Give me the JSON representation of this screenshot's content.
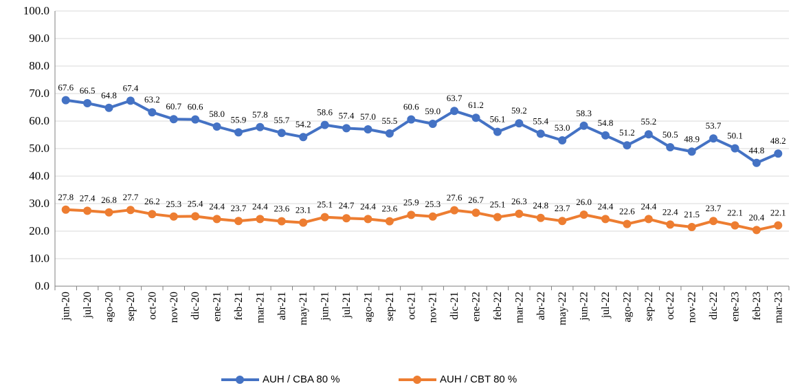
{
  "chart_data": {
    "type": "line",
    "categories": [
      "jun-20",
      "jul-20",
      "ago-20",
      "sep-20",
      "oct-20",
      "nov-20",
      "dic-20",
      "ene-21",
      "feb-21",
      "mar-21",
      "abr-21",
      "may-21",
      "jun-21",
      "jul-21",
      "ago-21",
      "sep-21",
      "oct-21",
      "nov-21",
      "dic-21",
      "ene-22",
      "feb-22",
      "mar-22",
      "abr-22",
      "may-22",
      "jun-22",
      "jul-22",
      "ago-22",
      "sep-22",
      "oct-22",
      "nov-22",
      "dic-22",
      "ene-23",
      "feb-23",
      "mar-23"
    ],
    "series": [
      {
        "name": "AUH / CBA 80 %",
        "color": "#4472c4",
        "values": [
          67.6,
          66.5,
          64.8,
          67.4,
          63.2,
          60.7,
          60.6,
          58.0,
          55.9,
          57.8,
          55.7,
          54.2,
          58.6,
          57.4,
          57.0,
          55.5,
          60.6,
          59.0,
          63.7,
          61.2,
          56.1,
          59.2,
          55.4,
          53.0,
          58.3,
          54.8,
          51.2,
          55.2,
          50.5,
          48.9,
          53.7,
          50.1,
          44.8,
          48.2
        ],
        "value_labels": [
          "67.6",
          "66.5",
          "64.8",
          "67.4",
          "63.2",
          "60.7",
          "60.6",
          "58.0",
          "55.9",
          "57.8",
          "55.7",
          "54.2",
          "58.6",
          "57.4",
          "57.0",
          "55.5",
          "60.6",
          "59.0",
          "63.7",
          "61.2",
          "56.1",
          "59.2",
          "55.4",
          "53.0",
          "58.3",
          "54.8",
          "51.2",
          "55.2",
          "50.5",
          "48.9",
          "53.7",
          "50.1",
          "44.8",
          "48.2"
        ]
      },
      {
        "name": "AUH / CBT 80 %",
        "color": "#ed7d31",
        "values": [
          27.8,
          27.4,
          26.8,
          27.7,
          26.2,
          25.3,
          25.4,
          24.4,
          23.7,
          24.4,
          23.6,
          23.1,
          25.1,
          24.7,
          24.4,
          23.6,
          25.9,
          25.3,
          27.6,
          26.7,
          25.1,
          26.3,
          24.8,
          23.7,
          26.0,
          24.4,
          22.6,
          24.4,
          22.4,
          21.5,
          23.7,
          22.1,
          20.4,
          22.1
        ],
        "value_labels": [
          "27.8",
          "27.4",
          "26.8",
          "27.7",
          "26.2",
          "25.3",
          "25.4",
          "24.4",
          "23.7",
          "24.4",
          "23.6",
          "23.1",
          "25.1",
          "24.7",
          "24.4",
          "23.6",
          "25.9",
          "25.3",
          "27.6",
          "26.7",
          "25.1",
          "26.3",
          "24.8",
          "23.7",
          "26.0",
          "24.4",
          "22.6",
          "24.4",
          "22.4",
          "21.5",
          "23.7",
          "22.1",
          "20.4",
          "22.1"
        ]
      }
    ],
    "ylim": [
      0,
      100
    ],
    "yticks": [
      {
        "value": 0,
        "label": "0.0"
      },
      {
        "value": 10,
        "label": "10.0"
      },
      {
        "value": 20,
        "label": "20.0"
      },
      {
        "value": 30,
        "label": "30.0"
      },
      {
        "value": 40,
        "label": "40.0"
      },
      {
        "value": 50,
        "label": "50.0"
      },
      {
        "value": 60,
        "label": "60.0"
      },
      {
        "value": 70,
        "label": "70.0"
      },
      {
        "value": 80,
        "label": "80.0"
      },
      {
        "value": 90,
        "label": "90.0"
      },
      {
        "value": 100,
        "label": "100.0"
      }
    ],
    "grid": true
  }
}
